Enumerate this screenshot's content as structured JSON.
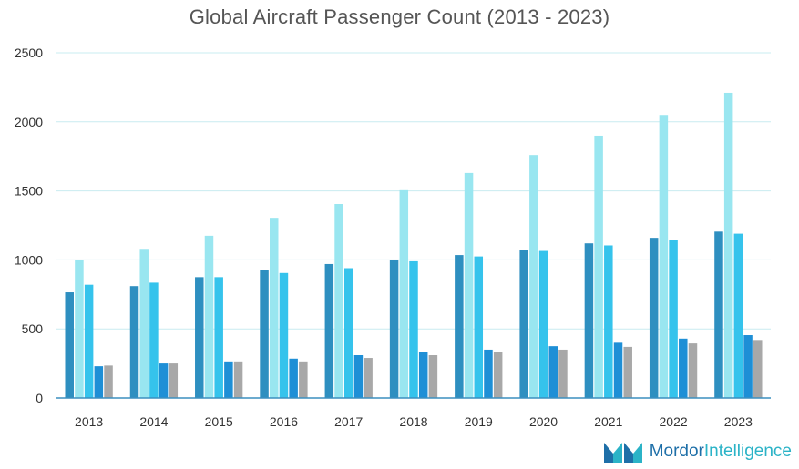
{
  "chart_data": {
    "type": "bar",
    "title": "Global Aircraft Passenger Count (2013 - 2023)",
    "xlabel": "",
    "ylabel": "",
    "ylim": [
      0,
      2500
    ],
    "yticks": [
      0,
      500,
      1000,
      1500,
      2000,
      2500
    ],
    "grid": true,
    "legend": "none",
    "categories": [
      "2013",
      "2014",
      "2015",
      "2016",
      "2017",
      "2018",
      "2019",
      "2020",
      "2021",
      "2022",
      "2023"
    ],
    "series": [
      {
        "color": "#2e8fc0",
        "values": [
          765,
          810,
          875,
          930,
          970,
          1000,
          1035,
          1075,
          1120,
          1160,
          1205
        ]
      },
      {
        "color": "#99e6f0",
        "values": [
          1000,
          1080,
          1175,
          1305,
          1405,
          1505,
          1630,
          1760,
          1900,
          2050,
          2210
        ]
      },
      {
        "color": "#35c3ec",
        "values": [
          820,
          835,
          875,
          905,
          940,
          990,
          1025,
          1065,
          1105,
          1145,
          1190
        ]
      },
      {
        "color": "#1e8fd6",
        "values": [
          230,
          250,
          265,
          285,
          310,
          330,
          350,
          375,
          400,
          430,
          455
        ]
      },
      {
        "color": "#a8a8a8",
        "values": [
          235,
          250,
          265,
          265,
          290,
          310,
          330,
          350,
          370,
          395,
          420
        ]
      }
    ]
  },
  "logo": {
    "part1": "Mordor",
    "part2": "Intelligence"
  }
}
